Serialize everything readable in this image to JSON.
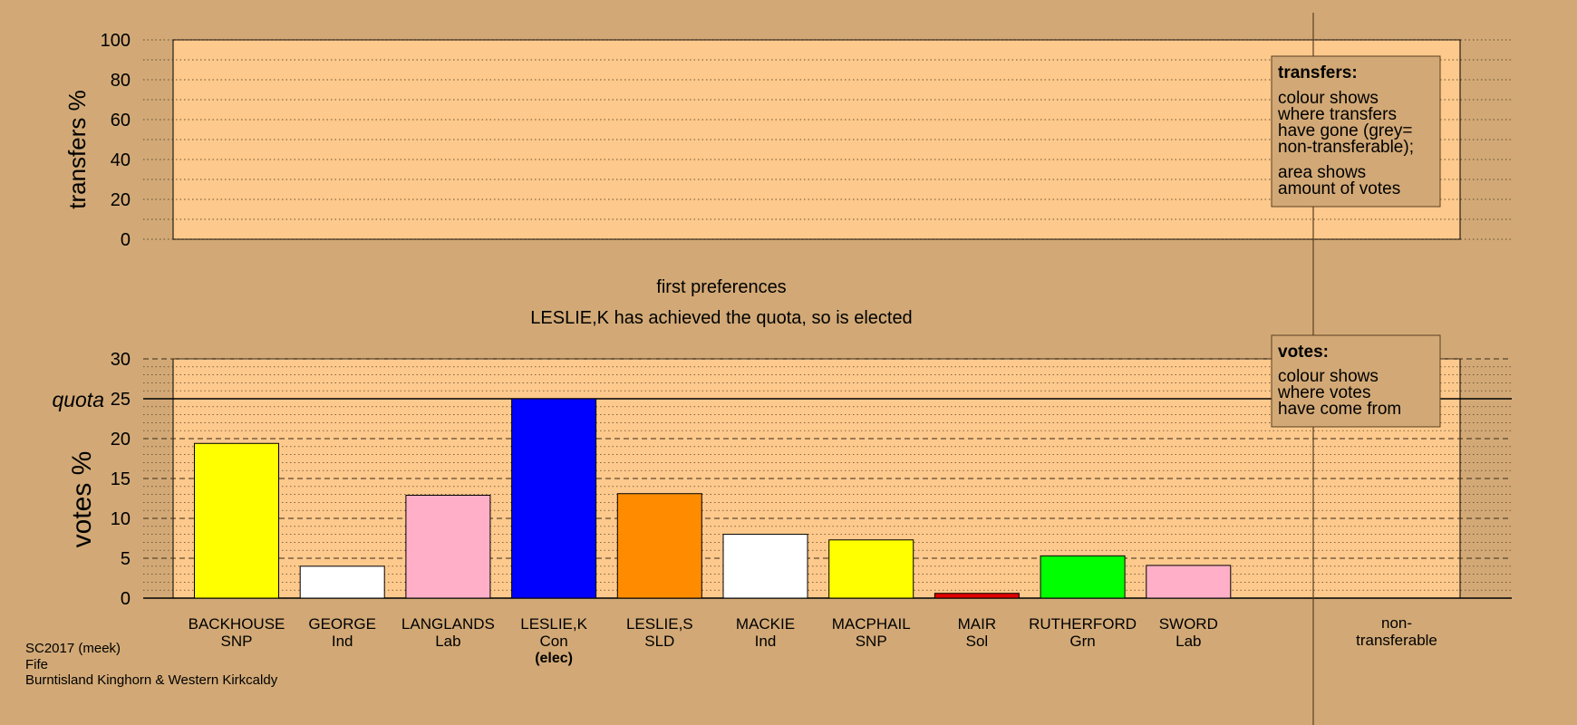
{
  "colors": {
    "background": "#d2a976",
    "plot_fill": "#fdc98c",
    "quota_line": "#000000"
  },
  "chart_data": [
    {
      "type": "area",
      "ylabel": "transfers %",
      "ylim": [
        0,
        100
      ],
      "yticks": [
        0,
        20,
        40,
        60,
        80,
        100
      ],
      "series": [],
      "legend": {
        "position": "top-right",
        "title": "transfers:",
        "lines": [
          "colour shows",
          "where transfers",
          "have gone (grey=",
          "non-transferable);"
        ],
        "lines2": [
          "area shows",
          "amount of votes"
        ]
      }
    },
    {
      "type": "bar",
      "title": "first preferences",
      "subtitle": "LESLIE,K has achieved the quota, so is elected",
      "ylabel": "votes %",
      "ylim": [
        0,
        30
      ],
      "yticks": [
        0,
        5,
        10,
        15,
        20,
        25,
        30
      ],
      "quota": 25,
      "quota_label": "quota",
      "categories": [
        "BACKHOUSE",
        "GEORGE",
        "LANGLANDS",
        "LESLIE,K",
        "LESLIE,S",
        "MACKIE",
        "MACPHAIL",
        "MAIR",
        "RUTHERFORD",
        "SWORD"
      ],
      "parties": [
        "SNP",
        "Ind",
        "Lab",
        "Con",
        "SLD",
        "Ind",
        "SNP",
        "Sol",
        "Grn",
        "Lab"
      ],
      "values": [
        19.4,
        4.0,
        12.9,
        25.0,
        13.1,
        8.0,
        7.3,
        0.6,
        5.3,
        4.1
      ],
      "bar_colors": [
        "#ffff00",
        "#ffffff",
        "#ffb0c8",
        "#0000ff",
        "#ff8c00",
        "#ffffff",
        "#ffff00",
        "#e00000",
        "#00ff00",
        "#ffb0c8"
      ],
      "elected_note": "(elec)",
      "elected_index": 3,
      "nontransferable_label": [
        "non-",
        "transferable"
      ],
      "legend": {
        "position": "top-right",
        "title": "votes:",
        "lines": [
          "colour shows",
          "where votes",
          "have come from"
        ]
      }
    }
  ],
  "footer": {
    "line1": "SC2017 (meek)",
    "line2": "Fife",
    "line3": "Burntisland Kinghorn & Western Kirkcaldy"
  }
}
